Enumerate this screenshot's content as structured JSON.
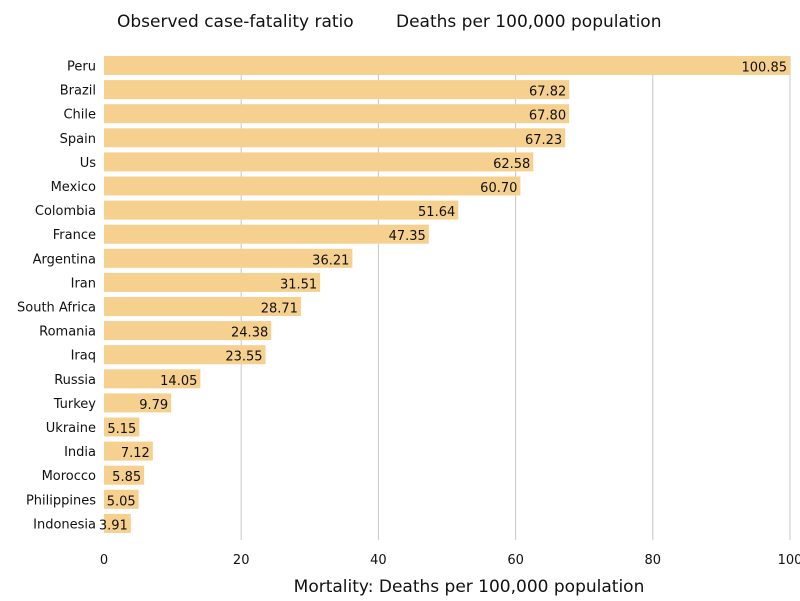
{
  "header": {
    "tab_case_fatality": "Observed case-fatality ratio",
    "tab_deaths": "Deaths per 100,000 population"
  },
  "colors": {
    "bar": "#f6d08f",
    "grid": "#c7c7c7",
    "text": "#111111"
  },
  "chart_data": {
    "type": "bar",
    "orientation": "horizontal",
    "categories": [
      "Peru",
      "Brazil",
      "Chile",
      "Spain",
      "Us",
      "Mexico",
      "Colombia",
      "France",
      "Argentina",
      "Iran",
      "South Africa",
      "Romania",
      "Iraq",
      "Russia",
      "Turkey",
      "Ukraine",
      "India",
      "Morocco",
      "Philippines",
      "Indonesia"
    ],
    "values": [
      100.85,
      67.82,
      67.8,
      67.23,
      62.58,
      60.7,
      51.64,
      47.35,
      36.21,
      31.51,
      28.71,
      24.38,
      23.55,
      14.05,
      9.79,
      5.15,
      7.12,
      5.85,
      5.05,
      3.91
    ],
    "value_labels": [
      "100.85",
      "67.82",
      "67.80",
      "67.23",
      "62.58",
      "60.70",
      "51.64",
      "47.35",
      "36.21",
      "31.51",
      "28.71",
      "24.38",
      "23.55",
      "14.05",
      "9.79",
      "5.15",
      "7.12",
      "5.85",
      "5.05",
      "3.91"
    ],
    "title": "",
    "xlabel": "Mortality: Deaths per 100,000 population",
    "ylabel": "",
    "xlim": [
      0,
      100
    ],
    "xticks": [
      "0",
      "20",
      "40",
      "60",
      "80",
      "100"
    ],
    "grid": true,
    "legend": "none"
  }
}
